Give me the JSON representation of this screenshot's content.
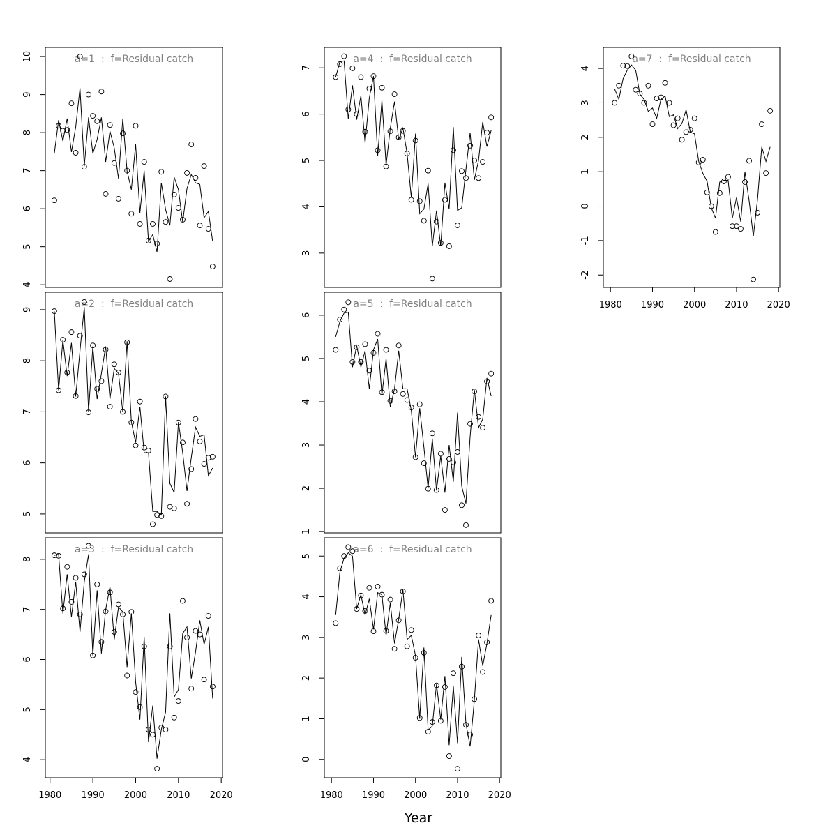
{
  "x_label": "Year",
  "chart_data": [
    {
      "type": "line",
      "title": "a=1  :  f=Residual catch",
      "x": [
        1981,
        1982,
        1983,
        1984,
        1985,
        1986,
        1987,
        1988,
        1989,
        1990,
        1991,
        1992,
        1993,
        1994,
        1995,
        1996,
        1997,
        1998,
        1999,
        2000,
        2001,
        2002,
        2003,
        2004,
        2005,
        2006,
        2007,
        2008,
        2009,
        2010,
        2011,
        2012,
        2013,
        2014,
        2015,
        2016,
        2017,
        2018
      ],
      "xlim": [
        1978.9,
        2020.3
      ],
      "ylim": [
        3.93,
        10.24
      ],
      "yticks": [
        4,
        5,
        6,
        7,
        8,
        9,
        10
      ],
      "series": [
        {
          "style": "points",
          "color": "#000000",
          "values": [
            6.22,
            8.18,
            8.05,
            8.07,
            8.77,
            7.47,
            10.0,
            7.1,
            9.0,
            8.44,
            8.3,
            9.08,
            6.39,
            8.2,
            7.2,
            6.26,
            7.98,
            7.0,
            5.87,
            8.18,
            5.6,
            7.23,
            5.16,
            5.6,
            5.08,
            6.97,
            5.65,
            4.15,
            6.37,
            6.02,
            5.71,
            6.94,
            7.69,
            6.81,
            5.56,
            7.12,
            5.47,
            4.48
          ]
        },
        {
          "style": "line",
          "color": "#000000",
          "values": [
            7.45,
            8.33,
            7.78,
            8.37,
            7.49,
            8.15,
            9.17,
            7.12,
            8.4,
            7.45,
            7.82,
            8.4,
            7.23,
            8.04,
            7.6,
            6.79,
            8.37,
            6.99,
            6.5,
            7.69,
            5.89,
            7.0,
            5.14,
            5.32,
            4.86,
            6.68,
            5.98,
            5.56,
            6.83,
            6.5,
            5.65,
            6.53,
            6.9,
            6.68,
            6.64,
            5.76,
            5.93,
            5.14
          ]
        }
      ]
    },
    {
      "type": "line",
      "title": "a=2  :  f=Residual catch",
      "x": [
        1981,
        1982,
        1983,
        1984,
        1985,
        1986,
        1987,
        1988,
        1989,
        1990,
        1991,
        1992,
        1993,
        1994,
        1995,
        1996,
        1997,
        1998,
        1999,
        2000,
        2001,
        2002,
        2003,
        2004,
        2005,
        2006,
        2007,
        2008,
        2009,
        2010,
        2011,
        2012,
        2013,
        2014,
        2015,
        2016,
        2017,
        2018
      ],
      "xlim": [
        1978.9,
        2020.3
      ],
      "ylim": [
        4.63,
        9.34
      ],
      "yticks": [
        5,
        6,
        7,
        8,
        9
      ],
      "series": [
        {
          "style": "points",
          "color": "#000000",
          "values": [
            8.97,
            7.42,
            8.41,
            7.77,
            8.56,
            7.31,
            8.49,
            9.15,
            6.99,
            8.3,
            7.45,
            7.6,
            8.22,
            7.1,
            7.93,
            7.77,
            7.0,
            8.36,
            6.79,
            6.34,
            7.2,
            6.3,
            6.24,
            4.8,
            4.98,
            4.96,
            7.3,
            5.14,
            5.11,
            6.79,
            6.4,
            5.2,
            5.88,
            6.86,
            6.42,
            5.98,
            6.1,
            6.12
          ]
        },
        {
          "style": "line",
          "color": "#000000",
          "values": [
            8.97,
            7.42,
            8.4,
            7.7,
            8.35,
            7.3,
            8.2,
            9.05,
            7.0,
            8.28,
            7.25,
            7.75,
            8.28,
            7.25,
            7.85,
            7.75,
            7.0,
            8.38,
            6.8,
            6.4,
            7.1,
            6.2,
            6.2,
            5.05,
            5.05,
            4.98,
            7.3,
            5.6,
            5.42,
            6.8,
            6.2,
            5.45,
            6.1,
            6.7,
            6.52,
            6.55,
            5.75,
            5.9
          ]
        }
      ]
    },
    {
      "type": "line",
      "title": "a=3  :  f=Residual catch",
      "x": [
        1981,
        1982,
        1983,
        1984,
        1985,
        1986,
        1987,
        1988,
        1989,
        1990,
        1991,
        1992,
        1993,
        1994,
        1995,
        1996,
        1997,
        1998,
        1999,
        2000,
        2001,
        2002,
        2003,
        2004,
        2005,
        2006,
        2007,
        2008,
        2009,
        2010,
        2011,
        2012,
        2013,
        2014,
        2015,
        2016,
        2017,
        2018
      ],
      "xlim": [
        1978.9,
        2020.3
      ],
      "ylim": [
        3.64,
        8.43
      ],
      "yticks": [
        4,
        5,
        6,
        7,
        8
      ],
      "xticks": [
        1980,
        1990,
        2000,
        2010,
        2020
      ],
      "series": [
        {
          "style": "points",
          "color": "#000000",
          "values": [
            8.08,
            8.07,
            7.02,
            7.85,
            7.15,
            7.63,
            6.9,
            7.7,
            8.27,
            6.08,
            7.5,
            6.35,
            6.96,
            7.34,
            6.55,
            7.1,
            6.9,
            5.68,
            6.95,
            5.35,
            5.05,
            6.26,
            4.6,
            4.5,
            3.82,
            4.64,
            4.6,
            6.26,
            4.84,
            5.17,
            7.17,
            6.44,
            5.42,
            6.57,
            6.5,
            5.6,
            6.87,
            5.46
          ]
        },
        {
          "style": "line",
          "color": "#000000",
          "values": [
            8.08,
            8.1,
            6.92,
            7.7,
            6.85,
            7.55,
            6.55,
            7.55,
            8.1,
            6.08,
            7.38,
            6.12,
            7.0,
            7.45,
            6.4,
            7.05,
            6.95,
            5.85,
            6.92,
            5.55,
            4.8,
            6.45,
            4.35,
            5.08,
            4.02,
            4.6,
            4.95,
            6.92,
            5.25,
            5.4,
            6.52,
            6.65,
            5.62,
            6.15,
            6.78,
            6.3,
            6.65,
            5.22
          ]
        }
      ]
    },
    {
      "type": "line",
      "title": "a=4  :  f=Residual catch",
      "x": [
        1981,
        1982,
        1983,
        1984,
        1985,
        1986,
        1987,
        1988,
        1989,
        1990,
        1991,
        1992,
        1993,
        1994,
        1995,
        1996,
        1997,
        1998,
        1999,
        2000,
        2001,
        2002,
        2003,
        2004,
        2005,
        2006,
        2007,
        2008,
        2009,
        2010,
        2011,
        2012,
        2013,
        2014,
        2015,
        2016,
        2017,
        2018
      ],
      "xlim": [
        1978.3,
        2020.3
      ],
      "ylim": [
        2.26,
        7.44
      ],
      "yticks": [
        3,
        4,
        5,
        6,
        7
      ],
      "series": [
        {
          "style": "points",
          "color": "#000000",
          "values": [
            6.8,
            7.08,
            7.25,
            6.1,
            6.99,
            6.0,
            6.8,
            5.62,
            6.55,
            6.82,
            5.22,
            6.57,
            4.87,
            5.63,
            6.43,
            5.5,
            5.64,
            5.15,
            4.15,
            5.43,
            4.12,
            3.7,
            4.78,
            2.45,
            3.68,
            3.22,
            4.15,
            3.15,
            5.22,
            3.6,
            4.77,
            4.62,
            5.32,
            5.0,
            4.62,
            4.97,
            5.6,
            5.93
          ]
        },
        {
          "style": "line",
          "color": "#000000",
          "values": [
            6.8,
            7.13,
            7.15,
            5.9,
            6.62,
            5.88,
            6.4,
            5.38,
            6.35,
            6.82,
            5.1,
            6.3,
            4.9,
            5.7,
            6.27,
            5.45,
            5.7,
            5.15,
            4.2,
            5.58,
            3.85,
            3.95,
            4.5,
            3.15,
            3.92,
            3.15,
            4.52,
            3.95,
            5.72,
            3.92,
            3.98,
            4.8,
            5.6,
            4.58,
            5.0,
            5.83,
            5.3,
            5.65
          ]
        }
      ]
    },
    {
      "type": "line",
      "title": "a=5  :  f=Residual catch",
      "x": [
        1981,
        1982,
        1983,
        1984,
        1985,
        1986,
        1987,
        1988,
        1989,
        1990,
        1991,
        1992,
        1993,
        1994,
        1995,
        1996,
        1997,
        1998,
        1999,
        2000,
        2001,
        2002,
        2003,
        2004,
        2005,
        2006,
        2007,
        2008,
        2009,
        2010,
        2011,
        2012,
        2013,
        2014,
        2015,
        2016,
        2017,
        2018
      ],
      "xlim": [
        1978.3,
        2020.3
      ],
      "ylim": [
        0.97,
        6.53
      ],
      "yticks": [
        1,
        2,
        3,
        4,
        5,
        6
      ],
      "series": [
        {
          "style": "points",
          "color": "#000000",
          "values": [
            5.2,
            5.9,
            6.13,
            6.3,
            4.92,
            5.26,
            4.92,
            5.33,
            4.72,
            5.13,
            5.57,
            4.22,
            5.2,
            4.02,
            4.24,
            5.3,
            4.18,
            4.04,
            3.87,
            2.72,
            3.94,
            2.58,
            1.99,
            3.27,
            1.96,
            2.8,
            1.5,
            2.68,
            2.6,
            2.84,
            1.61,
            1.15,
            3.49,
            4.24,
            3.65,
            3.4,
            4.47,
            4.65
          ]
        },
        {
          "style": "line",
          "color": "#000000",
          "values": [
            5.5,
            5.85,
            6.05,
            6.07,
            4.8,
            5.3,
            4.8,
            5.18,
            4.3,
            5.2,
            5.45,
            4.15,
            5.0,
            3.88,
            4.3,
            5.18,
            4.3,
            4.3,
            3.8,
            2.72,
            3.85,
            2.95,
            2.0,
            3.15,
            1.95,
            2.75,
            1.9,
            3.0,
            2.15,
            3.75,
            2.05,
            1.65,
            3.2,
            4.28,
            3.4,
            3.6,
            4.55,
            4.13
          ]
        }
      ]
    },
    {
      "type": "line",
      "title": "a=6  :  f=Residual catch",
      "x": [
        1981,
        1982,
        1983,
        1984,
        1985,
        1986,
        1987,
        1988,
        1989,
        1990,
        1991,
        1992,
        1993,
        1994,
        1995,
        1996,
        1997,
        1998,
        1999,
        2000,
        2001,
        2002,
        2003,
        2004,
        2005,
        2006,
        2007,
        2008,
        2009,
        2010,
        2011,
        2012,
        2013,
        2014,
        2015,
        2016,
        2017,
        2018
      ],
      "xlim": [
        1978.3,
        2020.3
      ],
      "ylim": [
        -0.45,
        5.45
      ],
      "yticks": [
        0,
        1,
        2,
        3,
        4,
        5
      ],
      "xticks": [
        1980,
        1990,
        2000,
        2010,
        2020
      ],
      "series": [
        {
          "style": "points",
          "color": "#000000",
          "values": [
            3.35,
            4.7,
            5.0,
            5.22,
            5.12,
            3.7,
            4.03,
            3.65,
            4.22,
            3.15,
            4.25,
            4.05,
            3.16,
            3.93,
            2.72,
            3.42,
            4.13,
            2.78,
            3.18,
            2.5,
            1.02,
            2.62,
            0.68,
            0.92,
            1.82,
            0.95,
            1.78,
            0.08,
            2.12,
            -0.23,
            2.28,
            0.85,
            0.61,
            1.48,
            3.05,
            2.15,
            2.88,
            3.9
          ]
        },
        {
          "style": "line",
          "color": "#000000",
          "values": [
            3.55,
            4.6,
            4.95,
            5.08,
            5.0,
            3.7,
            4.05,
            3.55,
            3.95,
            3.2,
            4.1,
            4.05,
            3.05,
            3.85,
            2.85,
            3.45,
            4.18,
            2.95,
            3.05,
            2.55,
            1.0,
            2.75,
            0.72,
            0.82,
            1.85,
            0.98,
            2.05,
            0.35,
            1.8,
            0.4,
            2.52,
            0.88,
            0.32,
            1.45,
            2.95,
            2.3,
            2.85,
            3.55
          ]
        }
      ]
    },
    {
      "type": "line",
      "title": "a=7  :  f=Residual catch",
      "x": [
        1981,
        1982,
        1983,
        1984,
        1985,
        1986,
        1987,
        1988,
        1989,
        1990,
        1991,
        1992,
        1993,
        1994,
        1995,
        1996,
        1997,
        1998,
        1999,
        2000,
        2001,
        2002,
        2003,
        2004,
        2005,
        2006,
        2007,
        2008,
        2009,
        2010,
        2011,
        2012,
        2013,
        2014,
        2015,
        2016,
        2017,
        2018
      ],
      "xlim": [
        1978.3,
        2020.3
      ],
      "ylim": [
        -2.36,
        4.61
      ],
      "yticks": [
        -2,
        -1,
        0,
        1,
        2,
        3,
        4
      ],
      "xticks": [
        1980,
        1990,
        2000,
        2010,
        2020
      ],
      "series": [
        {
          "style": "points",
          "color": "#000000",
          "values": [
            3.0,
            3.5,
            4.08,
            4.07,
            4.35,
            3.38,
            3.27,
            3.0,
            3.5,
            2.38,
            3.13,
            3.16,
            3.58,
            3.0,
            2.35,
            2.55,
            1.93,
            2.15,
            2.22,
            2.55,
            1.27,
            1.35,
            0.4,
            0.0,
            -0.75,
            0.38,
            0.72,
            0.85,
            -0.58,
            -0.58,
            -0.66,
            0.7,
            1.32,
            -2.13,
            -0.19,
            2.38,
            0.96,
            2.77
          ]
        },
        {
          "style": "line",
          "color": "#000000",
          "values": [
            3.4,
            3.1,
            3.7,
            3.95,
            4.1,
            3.95,
            3.25,
            3.1,
            2.75,
            2.85,
            2.55,
            3.1,
            3.2,
            2.6,
            2.65,
            2.25,
            2.4,
            2.8,
            2.15,
            2.1,
            1.3,
            0.95,
            0.72,
            -0.05,
            -0.35,
            0.7,
            0.75,
            0.75,
            -0.35,
            0.25,
            -0.45,
            1.0,
            0.15,
            -0.88,
            0.2,
            1.72,
            1.3,
            1.72
          ]
        }
      ]
    }
  ]
}
